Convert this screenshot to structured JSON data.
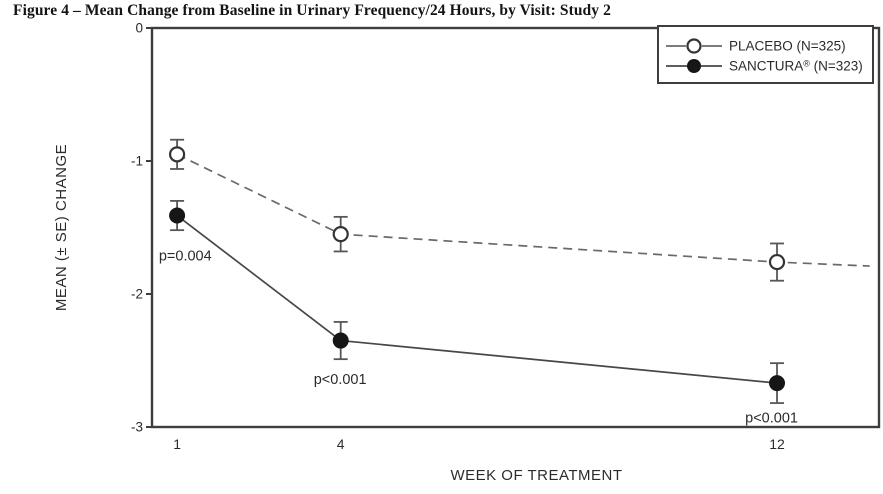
{
  "figure": {
    "title": "Figure 4 – Mean Change from Baseline in Urinary Frequency/24 Hours, by Visit: Study 2"
  },
  "chart_data": {
    "type": "line",
    "title": "Figure 4 – Mean Change from Baseline in Urinary Frequency/24 Hours, by Visit: Study 2",
    "xlabel": "WEEK OF TREATMENT",
    "ylabel": "MEAN (± SE) CHANGE",
    "x": [
      1,
      4,
      12
    ],
    "xticks": [
      1,
      4,
      12
    ],
    "yticks": [
      0,
      -1,
      -2,
      -3
    ],
    "xlim": [
      0.54,
      13.87
    ],
    "ylim": [
      -3,
      0
    ],
    "grid": false,
    "legend_position": "top-right",
    "series": [
      {
        "id": "placebo",
        "name": "PLACEBO (N=325)",
        "marker": "open-circle",
        "line_style": "dashed",
        "values": [
          -0.95,
          -1.55,
          -1.76
        ],
        "se": [
          0.11,
          0.13,
          0.14
        ],
        "extend_to": {
          "x": 13.7,
          "y": -1.79
        }
      },
      {
        "id": "sanctura",
        "name": "SANCTURA® (N=323)",
        "marker": "filled-circle",
        "line_style": "solid",
        "values": [
          -1.41,
          -2.35,
          -2.67
        ],
        "se": [
          0.11,
          0.14,
          0.15
        ]
      }
    ],
    "annotations": [
      {
        "label": "p=0.004",
        "x": 1.15,
        "y": -1.71
      },
      {
        "label": "p<0.001",
        "x": 3.99,
        "y": -2.64
      },
      {
        "label": "p<0.001",
        "x": 11.9,
        "y": -2.93
      }
    ],
    "colors": {
      "frame": "#3d3d3d",
      "text": "#2b2b2b",
      "placebo_line": "#6a6a6a",
      "sanctura_line": "#474747",
      "marker_fill": "#161616",
      "marker_stroke": "#333333",
      "error_bar": "#575757",
      "background": "#ffffff"
    }
  }
}
